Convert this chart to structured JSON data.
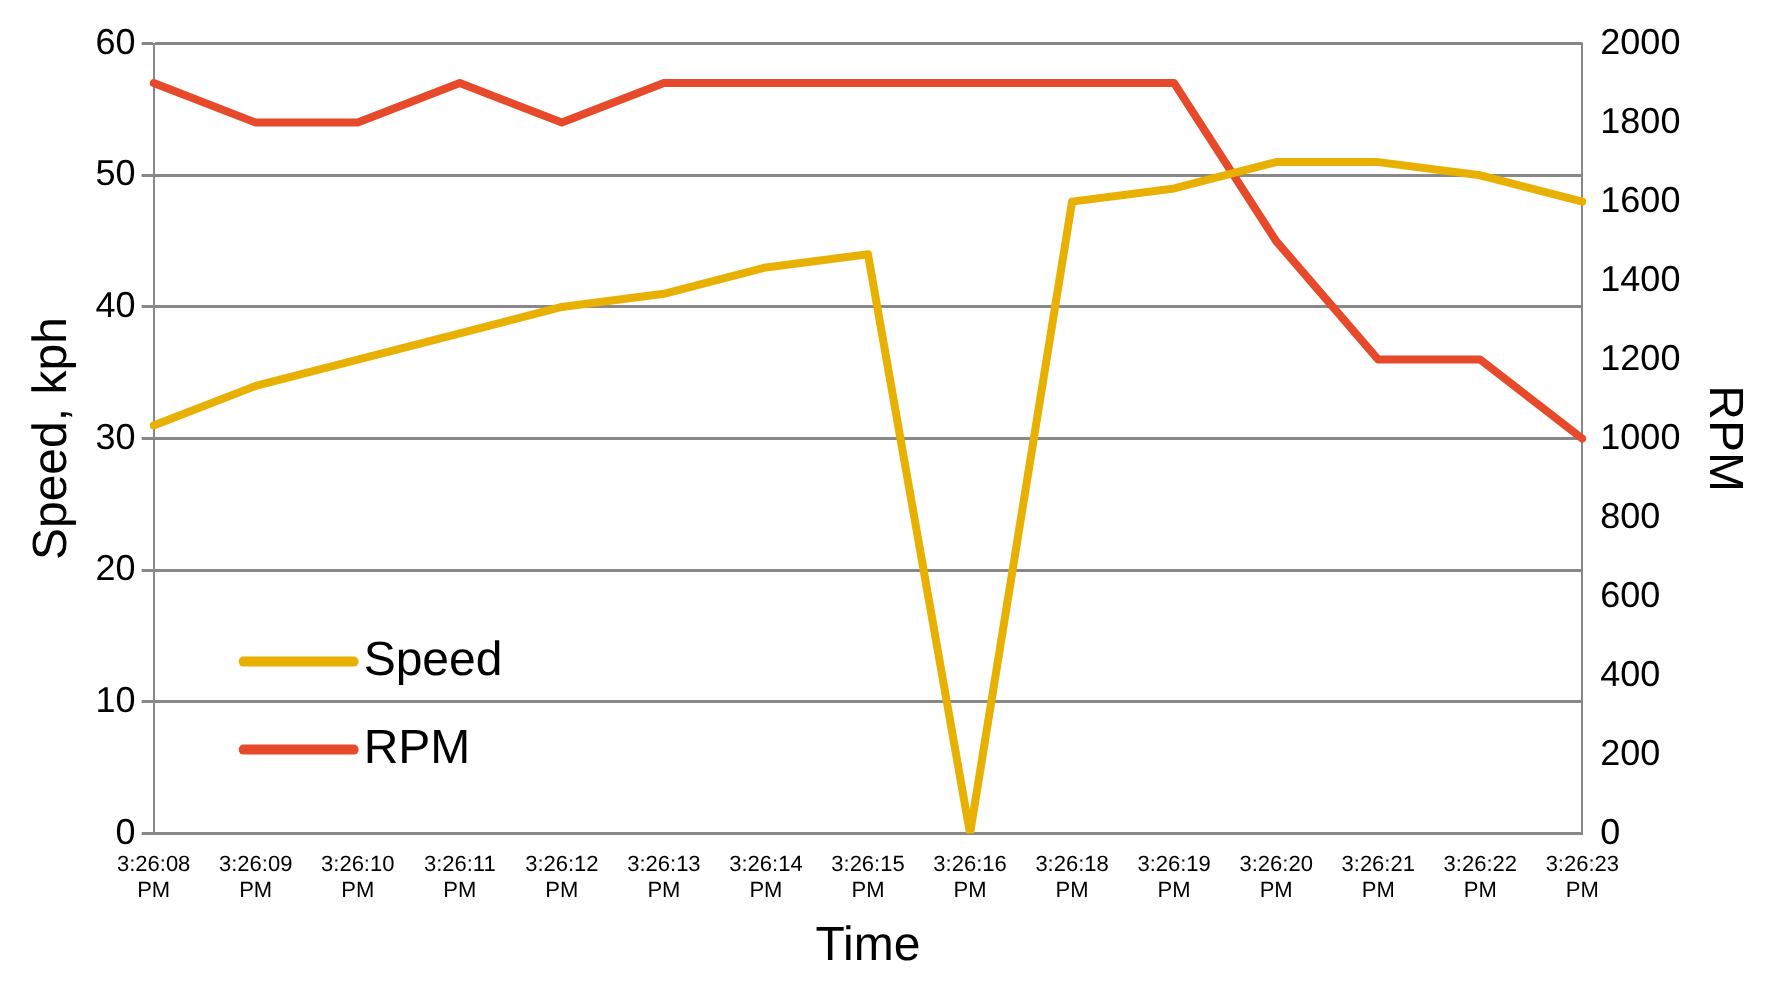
{
  "chart_data": {
    "type": "line",
    "xlabel": "Time",
    "ylabel": "Speed, kph",
    "y2label": "RPM",
    "categories": [
      "3:26:08 PM",
      "3:26:09 PM",
      "3:26:10 PM",
      "3:26:11 PM",
      "3:26:12 PM",
      "3:26:13 PM",
      "3:26:14 PM",
      "3:26:15 PM",
      "3:26:16 PM",
      "3:26:18 PM",
      "3:26:19 PM",
      "3:26:20 PM",
      "3:26:21 PM",
      "3:26:22 PM",
      "3:26:23 PM"
    ],
    "series": [
      {
        "name": "Speed",
        "color": "#e8b000",
        "values": [
          31,
          34,
          36,
          38,
          40,
          41,
          43,
          44,
          0,
          48,
          49,
          51,
          51,
          50,
          48
        ]
      },
      {
        "name": "RPM",
        "color": "#e64a2b",
        "axis": "y2",
        "values": [
          1900,
          1800,
          1800,
          1900,
          1800,
          1900,
          1900,
          1900,
          1900,
          1900,
          1900,
          1500,
          1200,
          1200,
          1000
        ]
      }
    ],
    "ylim": [
      0,
      60
    ],
    "yticks": [
      0,
      10,
      20,
      30,
      40,
      50,
      60
    ],
    "y2lim": [
      0,
      2000
    ],
    "y2ticks": [
      0,
      200,
      400,
      600,
      800,
      1000,
      1200,
      1400,
      1600,
      1800,
      2000
    ],
    "grid": "y",
    "legend": "bottom left",
    "marker": "none",
    "line_style": "solid"
  }
}
